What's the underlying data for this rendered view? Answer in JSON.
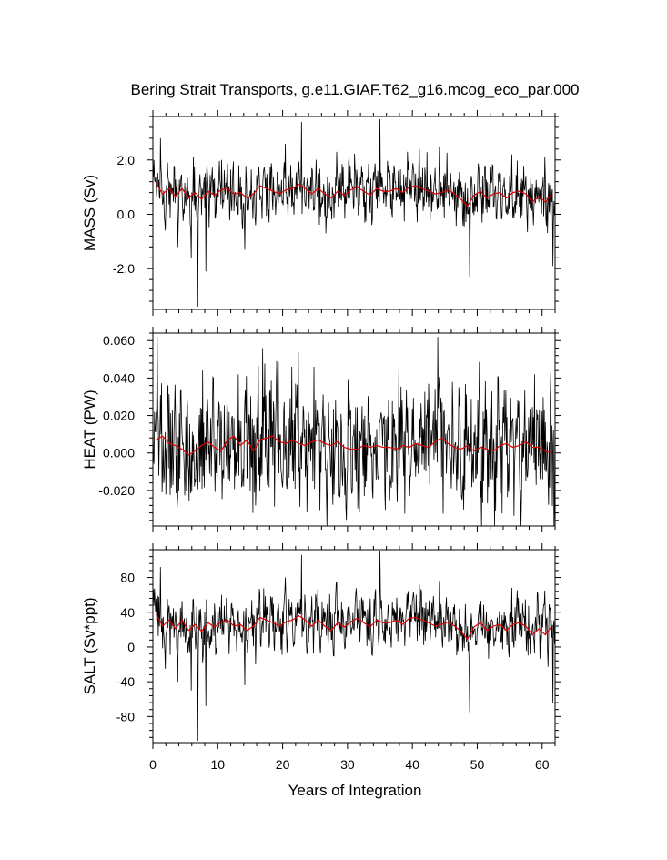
{
  "title": "Bering Strait Transports, g.e11.GIAF.T62_g16.mcog_eco_par.000",
  "colors": {
    "series": "#000000",
    "annual_mean": "#dd0000",
    "axes": "#000000"
  },
  "chart_data": [
    {
      "type": "line",
      "panel": "mass",
      "ylabel": "MASS (Sv)",
      "xlim": [
        0,
        62
      ],
      "ylim": [
        -3.5,
        3.6
      ],
      "yticks": [
        2.0,
        0.0,
        -2.0
      ],
      "ytick_labels": [
        "2.0",
        "0.0",
        "-2.0"
      ],
      "xticks": [
        0,
        10,
        20,
        30,
        40,
        50,
        60
      ],
      "xtick_labels": [],
      "series": [
        {
          "name": "",
          "style": "monthly",
          "x": [
            0.5,
            1.5,
            2.5,
            3.5,
            4.5,
            5.5,
            6.5,
            7.5,
            8.5,
            9.5,
            10.5,
            11.5,
            12.5,
            13.5,
            14.5,
            15.5,
            16.5,
            17.5,
            18.5,
            19.5,
            20.5,
            21.5,
            22.5,
            23.5,
            24.5,
            25.5,
            26.5,
            27.5,
            28.5,
            29.5,
            30.5,
            31.5,
            32.5,
            33.5,
            34.5,
            35.5,
            36.5,
            37.5,
            38.5,
            39.5,
            40.5,
            41.5,
            42.5,
            43.5,
            44.5,
            45.5,
            46.5,
            47.5,
            48.5,
            49.5,
            50.5,
            51.5,
            52.5,
            53.5,
            54.5,
            55.5,
            56.5,
            57.5,
            58.5,
            59.5,
            60.5,
            61.5
          ],
          "monthly_amplitude": 0.85,
          "spikes": [
            [
              1.2,
              2.8
            ],
            [
              1.9,
              -0.6
            ],
            [
              3.8,
              -1.2
            ],
            [
              5.9,
              -1.6
            ],
            [
              6.9,
              -3.4
            ],
            [
              8.2,
              -2.1
            ],
            [
              10.6,
              2.0
            ],
            [
              14.2,
              -1.3
            ],
            [
              15.8,
              -0.4
            ],
            [
              20.4,
              2.6
            ],
            [
              22.9,
              3.4
            ],
            [
              28.3,
              2.3
            ],
            [
              35.0,
              3.5
            ],
            [
              41.1,
              2.4
            ],
            [
              44.2,
              2.5
            ],
            [
              48.8,
              -2.3
            ],
            [
              55.3,
              2.2
            ],
            [
              60.4,
              2.1
            ],
            [
              61.7,
              -1.9
            ]
          ]
        },
        {
          "name": "",
          "style": "annual",
          "x": [
            0.5,
            1.5,
            2.5,
            3.5,
            4.5,
            5.5,
            6.5,
            7.5,
            8.5,
            9.5,
            10.5,
            11.5,
            12.5,
            13.5,
            14.5,
            15.5,
            16.5,
            17.5,
            18.5,
            19.5,
            20.5,
            21.5,
            22.5,
            23.5,
            24.5,
            25.5,
            26.5,
            27.5,
            28.5,
            29.5,
            30.5,
            31.5,
            32.5,
            33.5,
            34.5,
            35.5,
            36.5,
            37.5,
            38.5,
            39.5,
            40.5,
            41.5,
            42.5,
            43.5,
            44.5,
            45.5,
            46.5,
            47.5,
            48.5,
            49.5,
            50.5,
            51.5,
            52.5,
            53.5,
            54.5,
            55.5,
            56.5,
            57.5,
            58.5,
            59.5,
            60.5,
            61.5
          ],
          "y": [
            1.15,
            0.75,
            0.95,
            0.65,
            0.95,
            0.6,
            0.8,
            0.55,
            0.85,
            0.7,
            0.9,
            0.95,
            0.75,
            0.8,
            0.6,
            0.75,
            1.05,
            0.95,
            0.85,
            0.75,
            0.9,
            0.95,
            1.1,
            0.95,
            0.75,
            0.95,
            0.75,
            0.6,
            0.85,
            0.7,
            0.9,
            1.0,
            0.85,
            0.7,
            0.95,
            0.85,
            0.85,
            0.95,
            0.8,
            1.0,
            1.05,
            0.95,
            0.85,
            0.75,
            0.8,
            0.9,
            0.75,
            0.55,
            0.3,
            0.7,
            0.85,
            0.6,
            0.75,
            0.8,
            0.6,
            0.8,
            0.85,
            0.75,
            0.45,
            0.65,
            0.45,
            0.75
          ]
        }
      ]
    },
    {
      "type": "line",
      "panel": "heat",
      "ylabel": "HEAT (PW)",
      "xlim": [
        0,
        62
      ],
      "ylim": [
        -0.039,
        0.064
      ],
      "yticks": [
        0.06,
        0.04,
        0.02,
        0.0,
        -0.02
      ],
      "ytick_labels": [
        "0.060",
        "0.040",
        "0.020",
        "0.000",
        "-0.020"
      ],
      "xticks": [
        0,
        10,
        20,
        30,
        40,
        50,
        60
      ],
      "xtick_labels": [],
      "series": [
        {
          "name": "",
          "style": "monthly",
          "x": [
            0.5,
            1.5,
            2.5,
            3.5,
            4.5,
            5.5,
            6.5,
            7.5,
            8.5,
            9.5,
            10.5,
            11.5,
            12.5,
            13.5,
            14.5,
            15.5,
            16.5,
            17.5,
            18.5,
            19.5,
            20.5,
            21.5,
            22.5,
            23.5,
            24.5,
            25.5,
            26.5,
            27.5,
            28.5,
            29.5,
            30.5,
            31.5,
            32.5,
            33.5,
            34.5,
            35.5,
            36.5,
            37.5,
            38.5,
            39.5,
            40.5,
            41.5,
            42.5,
            43.5,
            44.5,
            45.5,
            46.5,
            47.5,
            48.5,
            49.5,
            50.5,
            51.5,
            52.5,
            53.5,
            54.5,
            55.5,
            56.5,
            57.5,
            58.5,
            59.5,
            60.5,
            61.5
          ],
          "monthly_amplitude": 0.026,
          "spikes": [
            [
              0.7,
              0.062
            ],
            [
              1.4,
              -0.021
            ],
            [
              4.3,
              0.034
            ],
            [
              7.7,
              0.044
            ],
            [
              13.2,
              0.042
            ],
            [
              15.4,
              -0.032
            ],
            [
              16.9,
              0.056
            ],
            [
              19.1,
              0.049
            ],
            [
              22.4,
              0.054
            ],
            [
              24.8,
              0.046
            ],
            [
              32.6,
              -0.023
            ],
            [
              37.9,
              0.044
            ],
            [
              43.9,
              0.062
            ],
            [
              47.7,
              -0.025
            ],
            [
              53.2,
              0.041
            ],
            [
              58.8,
              0.042
            ],
            [
              61.3,
              0.043
            ],
            [
              61.8,
              -0.039
            ]
          ]
        },
        {
          "name": "",
          "style": "annual",
          "x": [
            0.5,
            1.5,
            2.5,
            3.5,
            4.5,
            5.5,
            6.5,
            7.5,
            8.5,
            9.5,
            10.5,
            11.5,
            12.5,
            13.5,
            14.5,
            15.5,
            16.5,
            17.5,
            18.5,
            19.5,
            20.5,
            21.5,
            22.5,
            23.5,
            24.5,
            25.5,
            26.5,
            27.5,
            28.5,
            29.5,
            30.5,
            31.5,
            32.5,
            33.5,
            34.5,
            35.5,
            36.5,
            37.5,
            38.5,
            39.5,
            40.5,
            41.5,
            42.5,
            43.5,
            44.5,
            45.5,
            46.5,
            47.5,
            48.5,
            49.5,
            50.5,
            51.5,
            52.5,
            53.5,
            54.5,
            55.5,
            56.5,
            57.5,
            58.5,
            59.5,
            60.5,
            61.5
          ],
          "y": [
            0.007,
            0.009,
            0.005,
            0.004,
            0.002,
            -0.001,
            0.001,
            0.004,
            0.006,
            0.003,
            0.001,
            0.007,
            0.009,
            0.004,
            0.007,
            0.001,
            0.007,
            0.008,
            0.009,
            0.006,
            0.005,
            0.007,
            0.005,
            0.004,
            0.006,
            0.007,
            0.005,
            0.004,
            0.006,
            0.003,
            0.002,
            0.002,
            0.004,
            0.003,
            0.004,
            0.003,
            0.003,
            0.002,
            0.004,
            0.003,
            0.005,
            0.004,
            0.003,
            0.006,
            0.008,
            0.005,
            0.003,
            0.002,
            0.004,
            0.001,
            0.003,
            0.002,
            0.001,
            0.004,
            0.005,
            0.003,
            0.004,
            0.006,
            0.003,
            0.003,
            0.001,
            0.0
          ]
        }
      ]
    },
    {
      "type": "line",
      "panel": "salt",
      "ylabel": "SALT (Sv*ppt)",
      "xlim": [
        0,
        62
      ],
      "ylim": [
        -110,
        112
      ],
      "yticks": [
        80,
        40,
        0,
        -40,
        -80
      ],
      "ytick_labels": [
        "80",
        "40",
        "0",
        "-40",
        "-80"
      ],
      "xticks": [
        0,
        10,
        20,
        30,
        40,
        50,
        60
      ],
      "xtick_labels": [
        "0",
        "10",
        "20",
        "30",
        "40",
        "50",
        "60"
      ],
      "xlabel": "Years of Integration",
      "series": [
        {
          "name": "",
          "style": "monthly",
          "x": [
            0.5,
            1.5,
            2.5,
            3.5,
            4.5,
            5.5,
            6.5,
            7.5,
            8.5,
            9.5,
            10.5,
            11.5,
            12.5,
            13.5,
            14.5,
            15.5,
            16.5,
            17.5,
            18.5,
            19.5,
            20.5,
            21.5,
            22.5,
            23.5,
            24.5,
            25.5,
            26.5,
            27.5,
            28.5,
            29.5,
            30.5,
            31.5,
            32.5,
            33.5,
            34.5,
            35.5,
            36.5,
            37.5,
            38.5,
            39.5,
            40.5,
            41.5,
            42.5,
            43.5,
            44.5,
            45.5,
            46.5,
            47.5,
            48.5,
            49.5,
            50.5,
            51.5,
            52.5,
            53.5,
            54.5,
            55.5,
            56.5,
            57.5,
            58.5,
            59.5,
            60.5,
            61.5
          ],
          "monthly_amplitude": 26,
          "spikes": [
            [
              1.2,
              92
            ],
            [
              1.9,
              -25
            ],
            [
              3.8,
              -40
            ],
            [
              5.9,
              -50
            ],
            [
              6.9,
              -108
            ],
            [
              8.2,
              -68
            ],
            [
              10.6,
              60
            ],
            [
              14.2,
              -44
            ],
            [
              15.8,
              -20
            ],
            [
              20.4,
              80
            ],
            [
              22.9,
              106
            ],
            [
              28.3,
              75
            ],
            [
              35.0,
              110
            ],
            [
              41.1,
              72
            ],
            [
              44.2,
              76
            ],
            [
              48.8,
              -75
            ],
            [
              55.3,
              68
            ],
            [
              60.4,
              65
            ],
            [
              61.7,
              -65
            ]
          ]
        },
        {
          "name": "",
          "style": "annual",
          "x": [
            0.5,
            1.5,
            2.5,
            3.5,
            4.5,
            5.5,
            6.5,
            7.5,
            8.5,
            9.5,
            10.5,
            11.5,
            12.5,
            13.5,
            14.5,
            15.5,
            16.5,
            17.5,
            18.5,
            19.5,
            20.5,
            21.5,
            22.5,
            23.5,
            24.5,
            25.5,
            26.5,
            27.5,
            28.5,
            29.5,
            30.5,
            31.5,
            32.5,
            33.5,
            34.5,
            35.5,
            36.5,
            37.5,
            38.5,
            39.5,
            40.5,
            41.5,
            42.5,
            43.5,
            44.5,
            45.5,
            46.5,
            47.5,
            48.5,
            49.5,
            50.5,
            51.5,
            52.5,
            53.5,
            54.5,
            55.5,
            56.5,
            57.5,
            58.5,
            59.5,
            60.5,
            61.5
          ],
          "y": [
            38,
            24,
            31,
            21,
            31,
            19,
            26,
            18,
            28,
            23,
            29,
            31,
            24,
            26,
            19,
            24,
            34,
            31,
            28,
            24,
            29,
            31,
            36,
            31,
            24,
            31,
            24,
            19,
            28,
            23,
            29,
            33,
            28,
            23,
            31,
            28,
            28,
            31,
            26,
            33,
            34,
            31,
            28,
            24,
            26,
            29,
            24,
            18,
            9,
            23,
            28,
            19,
            24,
            26,
            19,
            26,
            28,
            24,
            14,
            21,
            14,
            24
          ]
        }
      ]
    }
  ]
}
